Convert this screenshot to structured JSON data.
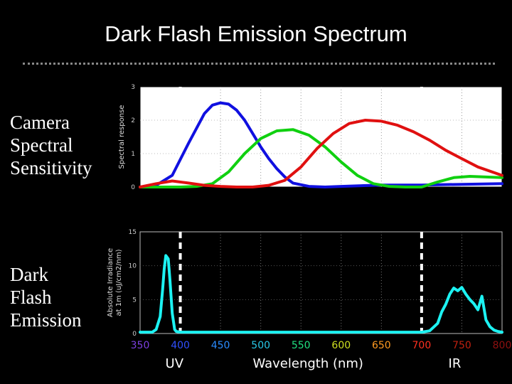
{
  "slide": {
    "title": "Dark Flash Emission Spectrum",
    "left_labels": {
      "top": [
        "Camera",
        "Spectral",
        "Sensitivity"
      ],
      "bottom": [
        "Dark",
        "Flash",
        "Emission"
      ]
    }
  },
  "chart_data": [
    {
      "type": "line",
      "ylabel": "Spectral response",
      "xlim": [
        350,
        800
      ],
      "ylim": [
        0,
        3
      ],
      "yticks": [
        "0",
        "1",
        "2",
        "3"
      ],
      "grid": true,
      "background": "#ffffff",
      "dashed_markers_nm": [
        400,
        700
      ],
      "series": [
        {
          "color": "#1010e0",
          "x": [
            350,
            370,
            390,
            410,
            430,
            440,
            450,
            460,
            470,
            480,
            490,
            500,
            510,
            520,
            530,
            540,
            560,
            580,
            600,
            650,
            700,
            750,
            800
          ],
          "y": [
            0.0,
            0.05,
            0.35,
            1.3,
            2.2,
            2.45,
            2.52,
            2.48,
            2.3,
            2.0,
            1.6,
            1.2,
            0.85,
            0.55,
            0.3,
            0.12,
            0.02,
            0.0,
            0.02,
            0.06,
            0.06,
            0.08,
            0.1
          ]
        },
        {
          "color": "#10d010",
          "x": [
            350,
            380,
            400,
            420,
            440,
            460,
            480,
            500,
            520,
            540,
            560,
            580,
            600,
            620,
            640,
            660,
            680,
            700,
            720,
            740,
            760,
            800
          ],
          "y": [
            0.0,
            0.0,
            0.0,
            0.02,
            0.1,
            0.45,
            1.0,
            1.45,
            1.68,
            1.72,
            1.55,
            1.2,
            0.75,
            0.35,
            0.1,
            0.02,
            0.0,
            0.0,
            0.15,
            0.28,
            0.32,
            0.28
          ]
        },
        {
          "color": "#e01010",
          "x": [
            350,
            370,
            390,
            410,
            430,
            450,
            470,
            490,
            510,
            530,
            550,
            570,
            590,
            610,
            630,
            650,
            670,
            690,
            710,
            730,
            750,
            770,
            800
          ],
          "y": [
            0.0,
            0.1,
            0.18,
            0.12,
            0.05,
            0.02,
            0.0,
            0.0,
            0.05,
            0.2,
            0.6,
            1.15,
            1.6,
            1.9,
            2.0,
            1.97,
            1.85,
            1.65,
            1.4,
            1.1,
            0.85,
            0.6,
            0.35
          ]
        }
      ]
    },
    {
      "type": "line",
      "ylabel": "Absolute Irradiance at 1m (uJ/cm2/nm)",
      "xlabel": "Wavelength (nm)",
      "xlim": [
        350,
        800
      ],
      "ylim": [
        0,
        15
      ],
      "xticks": [
        "350",
        "400",
        "450",
        "500",
        "550",
        "600",
        "650",
        "700",
        "750",
        "800"
      ],
      "yticks": [
        "0",
        "5",
        "10",
        "15"
      ],
      "xtick_colors": [
        "#7b3fe0",
        "#3050ff",
        "#2a8cff",
        "#28c8e8",
        "#20e080",
        "#d0e020",
        "#ff9a20",
        "#ff3020",
        "#c02010",
        "#901010"
      ],
      "band_labels": {
        "left": "UV",
        "right": "IR"
      },
      "grid": true,
      "background": "#000000",
      "dashed_markers_nm": [
        400,
        700
      ],
      "series": [
        {
          "color": "#1cf2f2",
          "x": [
            350,
            365,
            370,
            375,
            378,
            380,
            382,
            385,
            387,
            390,
            393,
            395,
            400,
            450,
            500,
            550,
            600,
            650,
            700,
            710,
            720,
            725,
            730,
            735,
            740,
            745,
            750,
            755,
            760,
            765,
            770,
            775,
            780,
            785,
            790,
            795,
            800
          ],
          "y": [
            0.2,
            0.2,
            0.6,
            2.5,
            6.5,
            9.5,
            11.5,
            11.0,
            8.0,
            3.0,
            0.6,
            0.3,
            0.2,
            0.2,
            0.2,
            0.2,
            0.2,
            0.2,
            0.2,
            0.4,
            1.5,
            3.2,
            4.3,
            5.8,
            6.7,
            6.3,
            6.8,
            5.8,
            5.0,
            4.4,
            3.5,
            5.5,
            2.0,
            1.0,
            0.5,
            0.3,
            0.2
          ]
        }
      ]
    }
  ]
}
